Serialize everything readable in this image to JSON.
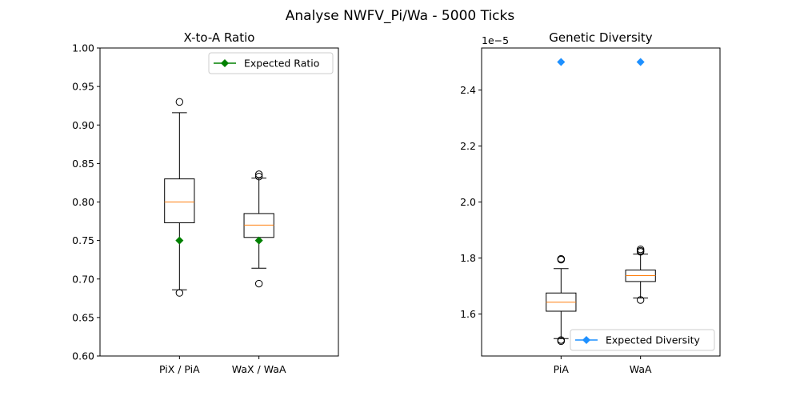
{
  "figure": {
    "suptitle": "Analyse NWFV_Pi/Wa - 5000 Ticks"
  },
  "chart_data": [
    {
      "type": "box",
      "title": "X-to-A Ratio",
      "xlabel": "",
      "ylabel": "",
      "categories": [
        "PiX / PiA",
        "WaX / WaA"
      ],
      "ylim": [
        0.6,
        1.0
      ],
      "yticks": [
        0.6,
        0.65,
        0.7,
        0.75,
        0.8,
        0.85,
        0.9,
        0.95,
        1.0
      ],
      "ytick_labels": [
        "0.60",
        "0.65",
        "0.70",
        "0.75",
        "0.80",
        "0.85",
        "0.90",
        "0.95",
        "1.00"
      ],
      "y_offset_label": "",
      "boxes": [
        {
          "category": "PiX / PiA",
          "whisker_low": 0.686,
          "q1": 0.773,
          "median": 0.8,
          "q3": 0.83,
          "whisker_high": 0.916,
          "outliers": [
            0.682,
            0.93
          ]
        },
        {
          "category": "WaX / WaA",
          "whisker_low": 0.714,
          "q1": 0.754,
          "median": 0.77,
          "q3": 0.785,
          "whisker_high": 0.831,
          "outliers": [
            0.694,
            0.833,
            0.836
          ]
        }
      ],
      "expected": {
        "name": "Expected Ratio",
        "values": [
          0.75,
          0.75
        ],
        "color": "#008000",
        "marker": "diamond"
      },
      "legend_position": "top-right",
      "grid": false,
      "box_color": "#000000",
      "median_color": "#ff7f0e"
    },
    {
      "type": "box",
      "title": "Genetic Diversity",
      "xlabel": "",
      "ylabel": "",
      "categories": [
        "PiA",
        "WaA"
      ],
      "ylim": [
        1.45,
        2.55
      ],
      "yticks": [
        1.6,
        1.8,
        2.0,
        2.2,
        2.4
      ],
      "ytick_labels": [
        "1.6",
        "1.8",
        "2.0",
        "2.2",
        "2.4"
      ],
      "y_offset_label": "1e−5",
      "boxes": [
        {
          "category": "PiA",
          "whisker_low": 1.512,
          "q1": 1.61,
          "median": 1.642,
          "q3": 1.675,
          "whisker_high": 1.762,
          "outliers": [
            1.503,
            1.507,
            1.794,
            1.797
          ]
        },
        {
          "category": "WaA",
          "whisker_low": 1.657,
          "q1": 1.716,
          "median": 1.737,
          "q3": 1.757,
          "whisker_high": 1.814,
          "outliers": [
            1.65,
            1.822,
            1.826,
            1.831
          ]
        }
      ],
      "expected": {
        "name": "Expected Diversity",
        "values": [
          2.5,
          2.5
        ],
        "color": "#1e90ff",
        "marker": "diamond"
      },
      "legend_position": "bottom-right",
      "grid": false,
      "box_color": "#000000",
      "median_color": "#ff7f0e"
    }
  ]
}
